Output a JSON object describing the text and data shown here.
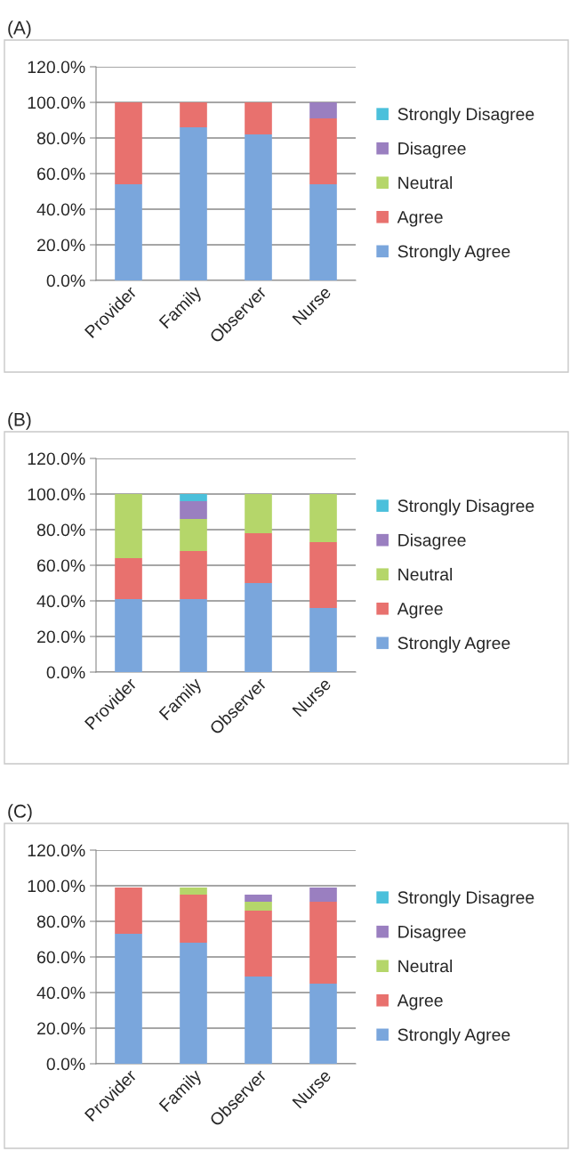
{
  "chart_data": [
    {
      "type": "bar",
      "title": "(A)",
      "stacked": true,
      "categories": [
        "Provider",
        "Family",
        "Observer",
        "Nurse"
      ],
      "ylim": [
        0,
        120
      ],
      "yticks": [
        {
          "value": 0,
          "label": "0.0%"
        },
        {
          "value": 20,
          "label": "20.0%"
        },
        {
          "value": 40,
          "label": "40.0%"
        },
        {
          "value": 60,
          "label": "60.0%"
        },
        {
          "value": 80,
          "label": "80.0%"
        },
        {
          "value": 100,
          "label": "100.0%"
        },
        {
          "value": 120,
          "label": "120.0%"
        }
      ],
      "grid": "y",
      "legend": "right",
      "series": [
        {
          "name": "Strongly Agree",
          "color": "#7aa6dc",
          "values": [
            54,
            86,
            82,
            54
          ]
        },
        {
          "name": "Agree",
          "color": "#e8716e",
          "values": [
            46,
            14,
            18,
            37
          ]
        },
        {
          "name": "Neutral",
          "color": "#b5d66a",
          "values": [
            0,
            0,
            0,
            0
          ]
        },
        {
          "name": "Disagree",
          "color": "#9a7fc0",
          "values": [
            0,
            0,
            0,
            9
          ]
        },
        {
          "name": "Strongly Disagree",
          "color": "#4bc0db",
          "values": [
            0,
            0,
            0,
            0
          ]
        }
      ]
    },
    {
      "type": "bar",
      "title": "(B)",
      "stacked": true,
      "categories": [
        "Provider",
        "Family",
        "Observer",
        "Nurse"
      ],
      "ylim": [
        0,
        120
      ],
      "yticks": [
        {
          "value": 0,
          "label": "0.0%"
        },
        {
          "value": 20,
          "label": "20.0%"
        },
        {
          "value": 40,
          "label": "40.0%"
        },
        {
          "value": 60,
          "label": "60.0%"
        },
        {
          "value": 80,
          "label": "80.0%"
        },
        {
          "value": 100,
          "label": "100.0%"
        },
        {
          "value": 120,
          "label": "120.0%"
        }
      ],
      "grid": "y",
      "legend": "right",
      "series": [
        {
          "name": "Strongly Agree",
          "color": "#7aa6dc",
          "values": [
            41,
            41,
            50,
            36
          ]
        },
        {
          "name": "Agree",
          "color": "#e8716e",
          "values": [
            23,
            27,
            28,
            37
          ]
        },
        {
          "name": "Neutral",
          "color": "#b5d66a",
          "values": [
            36,
            18,
            22,
            27
          ]
        },
        {
          "name": "Disagree",
          "color": "#9a7fc0",
          "values": [
            0,
            10,
            0,
            0
          ]
        },
        {
          "name": "Strongly Disagree",
          "color": "#4bc0db",
          "values": [
            0,
            4,
            0,
            0
          ]
        }
      ]
    },
    {
      "type": "bar",
      "title": "(C)",
      "stacked": true,
      "categories": [
        "Provider",
        "Family",
        "Observer",
        "Nurse"
      ],
      "ylim": [
        0,
        120
      ],
      "yticks": [
        {
          "value": 0,
          "label": "0.0%"
        },
        {
          "value": 20,
          "label": "20.0%"
        },
        {
          "value": 40,
          "label": "40.0%"
        },
        {
          "value": 60,
          "label": "60.0%"
        },
        {
          "value": 80,
          "label": "80.0%"
        },
        {
          "value": 100,
          "label": "100.0%"
        },
        {
          "value": 120,
          "label": "120.0%"
        }
      ],
      "grid": "y",
      "legend": "right",
      "series": [
        {
          "name": "Strongly Agree",
          "color": "#7aa6dc",
          "values": [
            73,
            68,
            49,
            45
          ]
        },
        {
          "name": "Agree",
          "color": "#e8716e",
          "values": [
            26,
            27,
            37,
            46
          ]
        },
        {
          "name": "Neutral",
          "color": "#b5d66a",
          "values": [
            0,
            4,
            5,
            0
          ]
        },
        {
          "name": "Disagree",
          "color": "#9a7fc0",
          "values": [
            0,
            0,
            4,
            8
          ]
        },
        {
          "name": "Strongly Disagree",
          "color": "#4bc0db",
          "values": [
            0,
            0,
            0,
            0
          ]
        }
      ]
    }
  ]
}
